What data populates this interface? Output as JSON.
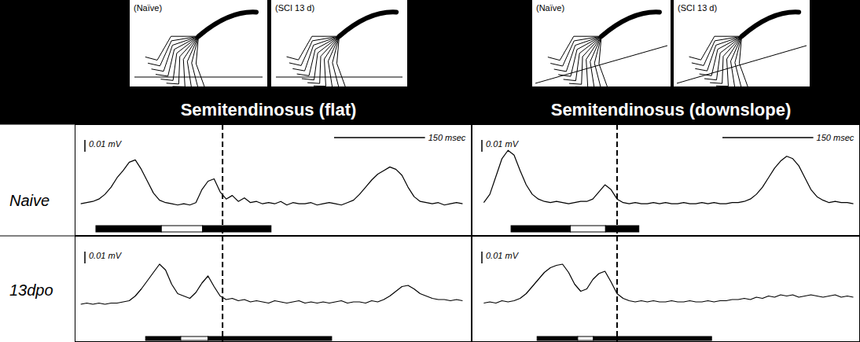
{
  "columns": [
    {
      "title": "Semitendinosus (flat)",
      "stick_labels": [
        "(Naïve)",
        "(SCI 13 d)"
      ]
    },
    {
      "title": "Semitendinosus (downslope)",
      "stick_labels": [
        "(Naïve)",
        "(SCI 13 d)"
      ]
    }
  ],
  "rows": [
    "Naive",
    "13dpo"
  ],
  "chart_data": [
    {
      "type": "line",
      "color": "#000000",
      "tick_labels": false,
      "xlim": [
        0,
        655
      ],
      "ylim": [
        -0.025,
        0.069
      ],
      "x": [
        10,
        20,
        30,
        40,
        50,
        60,
        70,
        80,
        90,
        100,
        110,
        120,
        130,
        140,
        150,
        160,
        170,
        180,
        190,
        200,
        210,
        220,
        230,
        240,
        250,
        260,
        270,
        280,
        290,
        300,
        310,
        320,
        330,
        340,
        350,
        360,
        370,
        380,
        390,
        400,
        410,
        420,
        430,
        440,
        450,
        460,
        470,
        480,
        490,
        500,
        510,
        520,
        530,
        540,
        550,
        560,
        570,
        580,
        590,
        600,
        610,
        620,
        630,
        640
      ],
      "values": [
        0.002,
        0.003,
        0.004,
        0.006,
        0.01,
        0.016,
        0.024,
        0.03,
        0.037,
        0.039,
        0.031,
        0.021,
        0.011,
        0.005,
        0.003,
        0.002,
        0.001,
        0.002,
        0.001,
        0.003,
        0.014,
        0.021,
        0.023,
        0.012,
        0.006,
        0.009,
        0.004,
        0.007,
        0.003,
        0.004,
        0.002,
        0.003,
        0.002,
        0.004,
        0.001,
        0.003,
        0.002,
        0.002,
        0.003,
        0.001,
        0.002,
        0.003,
        0.002,
        0.001,
        0.003,
        0.005,
        0.01,
        0.016,
        0.022,
        0.027,
        0.03,
        0.033,
        0.031,
        0.026,
        0.016,
        0.008,
        0.004,
        0.003,
        0.002,
        0.003,
        0.001,
        0.002,
        0.003,
        0.002
      ],
      "scale_bar_y": {
        "value": 0.01,
        "label": "0.01 mV"
      },
      "scale_bar_x": {
        "value": 150,
        "label": "150 msec"
      },
      "phase_bars": [
        {
          "start": 35,
          "end": 143,
          "color": "#000000"
        },
        {
          "start": 143,
          "end": 211,
          "color": "#ffffff"
        },
        {
          "start": 211,
          "end": 324,
          "color": "#000000"
        }
      ],
      "marker_x": 244
    },
    {
      "type": "line",
      "color": "#000000",
      "tick_labels": false,
      "xlim": [
        0,
        641
      ],
      "ylim": [
        -0.025,
        0.069
      ],
      "x": [
        20,
        30,
        40,
        50,
        60,
        70,
        80,
        90,
        100,
        110,
        120,
        130,
        140,
        150,
        160,
        170,
        180,
        190,
        200,
        210,
        220,
        230,
        240,
        250,
        260,
        270,
        280,
        290,
        300,
        310,
        320,
        330,
        340,
        350,
        360,
        370,
        380,
        390,
        400,
        410,
        420,
        430,
        440,
        450,
        460,
        470,
        480,
        490,
        500,
        510,
        520,
        530,
        540,
        550,
        560,
        570,
        580,
        590,
        600,
        610,
        620,
        630
      ],
      "values": [
        0.003,
        0.01,
        0.025,
        0.04,
        0.047,
        0.043,
        0.03,
        0.018,
        0.01,
        0.006,
        0.004,
        0.003,
        0.004,
        0.003,
        0.002,
        0.003,
        0.004,
        0.004,
        0.006,
        0.012,
        0.018,
        0.014,
        0.006,
        0.003,
        0.002,
        0.003,
        0.002,
        0.002,
        0.003,
        0.002,
        0.003,
        0.002,
        0.002,
        0.003,
        0.002,
        0.002,
        0.003,
        0.002,
        0.003,
        0.002,
        0.002,
        0.003,
        0.003,
        0.004,
        0.006,
        0.01,
        0.016,
        0.024,
        0.032,
        0.038,
        0.042,
        0.04,
        0.034,
        0.024,
        0.014,
        0.008,
        0.005,
        0.003,
        0.004,
        0.003,
        0.003,
        0.002
      ],
      "scale_bar_y": {
        "value": 0.01,
        "label": "0.01 mV"
      },
      "scale_bar_x": {
        "value": 150,
        "label": "150 msec"
      },
      "phase_bars": [
        {
          "start": 65,
          "end": 163,
          "color": "#000000"
        },
        {
          "start": 163,
          "end": 221,
          "color": "#ffffff"
        },
        {
          "start": 221,
          "end": 276,
          "color": "#000000"
        }
      ],
      "marker_x": 240
    },
    {
      "type": "line",
      "color": "#000000",
      "tick_labels": false,
      "xlim": [
        0,
        655
      ],
      "ylim": [
        -0.031,
        0.059
      ],
      "x": [
        10,
        20,
        30,
        40,
        50,
        60,
        70,
        80,
        90,
        100,
        110,
        120,
        130,
        140,
        150,
        160,
        170,
        180,
        190,
        200,
        210,
        220,
        230,
        240,
        250,
        260,
        270,
        280,
        290,
        300,
        310,
        320,
        330,
        340,
        350,
        360,
        370,
        380,
        390,
        400,
        410,
        420,
        430,
        440,
        450,
        460,
        470,
        480,
        490,
        500,
        510,
        520,
        530,
        540,
        550,
        560,
        570,
        580,
        590,
        600,
        610,
        620,
        630,
        640
      ],
      "values": [
        0.001,
        0.002,
        0.001,
        0.002,
        0.001,
        0.002,
        0.002,
        0.003,
        0.004,
        0.008,
        0.014,
        0.021,
        0.028,
        0.035,
        0.03,
        0.018,
        0.01,
        0.008,
        0.006,
        0.011,
        0.019,
        0.025,
        0.016,
        0.008,
        0.005,
        0.006,
        0.004,
        0.005,
        0.003,
        0.004,
        0.003,
        0.002,
        0.004,
        0.003,
        0.002,
        0.003,
        0.004,
        0.002,
        0.003,
        0.002,
        0.003,
        0.002,
        0.003,
        0.004,
        0.002,
        0.003,
        0.003,
        0.002,
        0.004,
        0.003,
        0.005,
        0.008,
        0.012,
        0.016,
        0.017,
        0.014,
        0.01,
        0.008,
        0.006,
        0.005,
        0.005,
        0.004,
        0.005,
        0.004
      ],
      "scale_bar_y": {
        "value": 0.01,
        "label": "0.01 mV"
      },
      "phase_bars": [
        {
          "start": 117,
          "end": 175,
          "color": "#000000"
        },
        {
          "start": 175,
          "end": 220,
          "color": "#ffffff"
        },
        {
          "start": 220,
          "end": 424,
          "color": "#000000"
        }
      ],
      "marker_x": 244
    },
    {
      "type": "line",
      "color": "#000000",
      "tick_labels": false,
      "xlim": [
        0,
        641
      ],
      "ylim": [
        -0.031,
        0.059
      ],
      "x": [
        20,
        30,
        40,
        50,
        60,
        70,
        80,
        90,
        100,
        110,
        120,
        130,
        140,
        150,
        160,
        170,
        180,
        190,
        200,
        210,
        220,
        230,
        240,
        250,
        260,
        270,
        280,
        290,
        300,
        310,
        320,
        330,
        340,
        350,
        360,
        370,
        380,
        390,
        400,
        410,
        420,
        430,
        440,
        450,
        460,
        470,
        480,
        490,
        500,
        510,
        520,
        530,
        540,
        550,
        560,
        570,
        580,
        590,
        600,
        610,
        620,
        630
      ],
      "values": [
        0.002,
        0.003,
        0.002,
        0.004,
        0.003,
        0.004,
        0.006,
        0.01,
        0.016,
        0.022,
        0.028,
        0.032,
        0.034,
        0.035,
        0.028,
        0.018,
        0.012,
        0.014,
        0.022,
        0.027,
        0.029,
        0.02,
        0.01,
        0.006,
        0.004,
        0.003,
        0.004,
        0.003,
        0.004,
        0.003,
        0.003,
        0.004,
        0.003,
        0.003,
        0.004,
        0.003,
        0.003,
        0.004,
        0.003,
        0.004,
        0.004,
        0.005,
        0.005,
        0.006,
        0.005,
        0.007,
        0.006,
        0.008,
        0.007,
        0.009,
        0.008,
        0.009,
        0.007,
        0.008,
        0.009,
        0.008,
        0.007,
        0.008,
        0.009,
        0.007,
        0.008,
        0.007
      ],
      "scale_bar_y": {
        "value": 0.01,
        "label": "0.01 mV"
      },
      "phase_bars": [
        {
          "start": 108,
          "end": 175,
          "color": "#000000"
        },
        {
          "start": 175,
          "end": 201,
          "color": "#ffffff"
        },
        {
          "start": 201,
          "end": 396,
          "color": "#000000"
        }
      ],
      "marker_x": 240
    }
  ]
}
